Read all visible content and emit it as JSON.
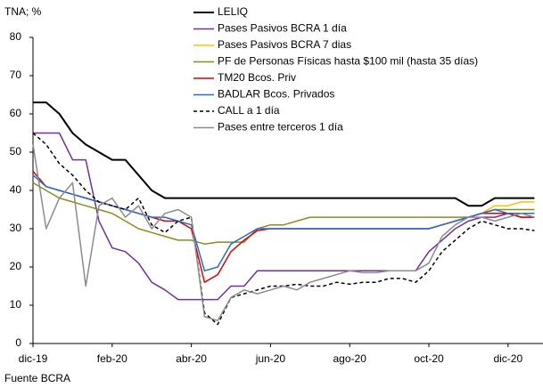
{
  "chart_data": {
    "type": "line",
    "y_label": "TNA; %",
    "source": "Fuente BCRA",
    "categories": [
      "dic-19",
      null,
      null,
      null,
      null,
      null,
      "feb-20",
      null,
      null,
      null,
      null,
      null,
      "abr-20",
      null,
      null,
      null,
      null,
      null,
      "jun-20",
      null,
      null,
      null,
      null,
      null,
      "ago-20",
      null,
      null,
      null,
      null,
      null,
      "oct-20",
      null,
      null,
      null,
      null,
      null,
      "dic-20",
      null,
      null
    ],
    "ylim": [
      0,
      80
    ],
    "yticks": [
      0,
      10,
      20,
      30,
      40,
      50,
      60,
      70,
      80
    ],
    "grid": false,
    "series": [
      {
        "name": "LELIQ",
        "color": "#000000",
        "linewidth": 2,
        "values": [
          63,
          63,
          60,
          55,
          52,
          50,
          48,
          48,
          44,
          40,
          38,
          38,
          38,
          38,
          38,
          38,
          38,
          38,
          38,
          38,
          38,
          38,
          38,
          38,
          38,
          38,
          38,
          38,
          38,
          38,
          38,
          38,
          38,
          36,
          36,
          38,
          38,
          38,
          38
        ]
      },
      {
        "name": "Pases Pasivos BCRA 1 día",
        "color": "#7030a0",
        "linewidth": 1.5,
        "values": [
          55,
          55,
          55,
          48,
          48,
          32,
          25,
          24,
          21,
          16,
          14,
          11.5,
          11.5,
          11.5,
          11.5,
          15,
          15,
          19,
          19,
          19,
          19,
          19,
          19,
          19,
          19,
          19,
          19,
          19,
          19,
          19,
          24,
          27,
          30,
          32,
          33,
          33,
          34,
          33,
          33
        ]
      },
      {
        "name": "Pases Pasivos BCRA 7 dias",
        "color": "#ffc000",
        "linewidth": 1.5,
        "values": [
          null,
          null,
          null,
          null,
          null,
          null,
          null,
          null,
          null,
          null,
          null,
          null,
          null,
          null,
          null,
          null,
          null,
          null,
          null,
          null,
          null,
          null,
          null,
          null,
          null,
          null,
          null,
          null,
          null,
          null,
          30,
          31,
          32,
          33,
          34,
          36,
          36,
          37,
          37
        ]
      },
      {
        "name": "PF de Personas Físicas hasta $100 mil (hasta 35 días)",
        "color": "#8c8c1e",
        "linewidth": 1.5,
        "values": [
          42,
          40,
          38,
          37,
          36,
          35,
          34,
          32,
          30,
          29,
          28,
          27,
          27,
          26,
          26.5,
          26.5,
          26.5,
          30,
          31,
          31,
          32,
          33,
          33,
          33,
          33,
          33,
          33,
          33,
          33,
          33,
          33,
          33,
          33,
          33,
          34,
          35,
          35,
          35,
          35
        ]
      },
      {
        "name": "TM20 Bcos. Priv",
        "color": "#e00000",
        "linewidth": 1.5,
        "values": [
          45,
          41,
          40,
          39,
          38,
          37,
          36,
          35,
          34,
          33,
          32,
          32,
          30,
          16,
          18,
          24,
          27,
          29.5,
          30,
          30,
          30,
          30,
          30,
          30,
          30,
          30,
          30,
          30,
          30,
          30,
          30,
          31,
          32,
          33,
          34,
          34,
          34,
          33,
          33
        ]
      },
      {
        "name": "BADLAR Bcos. Privados",
        "color": "#1f6fd0",
        "linewidth": 1.5,
        "values": [
          44,
          41,
          40,
          39,
          38,
          37,
          36,
          35,
          34,
          33,
          33,
          32,
          31,
          19,
          20,
          26,
          28,
          30,
          30,
          30,
          30,
          30,
          30,
          30,
          30,
          30,
          30,
          30,
          30,
          30,
          30,
          31,
          32,
          33,
          34,
          35,
          34,
          34,
          34
        ]
      },
      {
        "name": "CALL a 1 día",
        "color": "#000000",
        "linewidth": 1.5,
        "linestyle": "dashed",
        "values": [
          55,
          52,
          47,
          44,
          40,
          37,
          36,
          35,
          38,
          31,
          29,
          32,
          33,
          8,
          5,
          12,
          13,
          14,
          15,
          15,
          15.5,
          15,
          15,
          16,
          15.5,
          16,
          16,
          17,
          17,
          16,
          19,
          24,
          27,
          30,
          32,
          31,
          30,
          30,
          29.5
        ]
      },
      {
        "name": "Pases entre terceros 1 día",
        "color": "#8c8c8c",
        "linewidth": 1.5,
        "values": [
          52,
          30,
          38,
          42,
          15,
          36,
          38,
          33,
          36,
          30,
          34,
          35,
          33,
          7,
          6,
          12,
          14,
          13,
          14,
          15,
          14,
          16,
          17,
          18,
          19,
          18.5,
          18.5,
          19,
          19,
          19,
          21,
          28,
          31,
          33,
          33,
          32,
          33,
          34,
          33
        ]
      }
    ]
  }
}
